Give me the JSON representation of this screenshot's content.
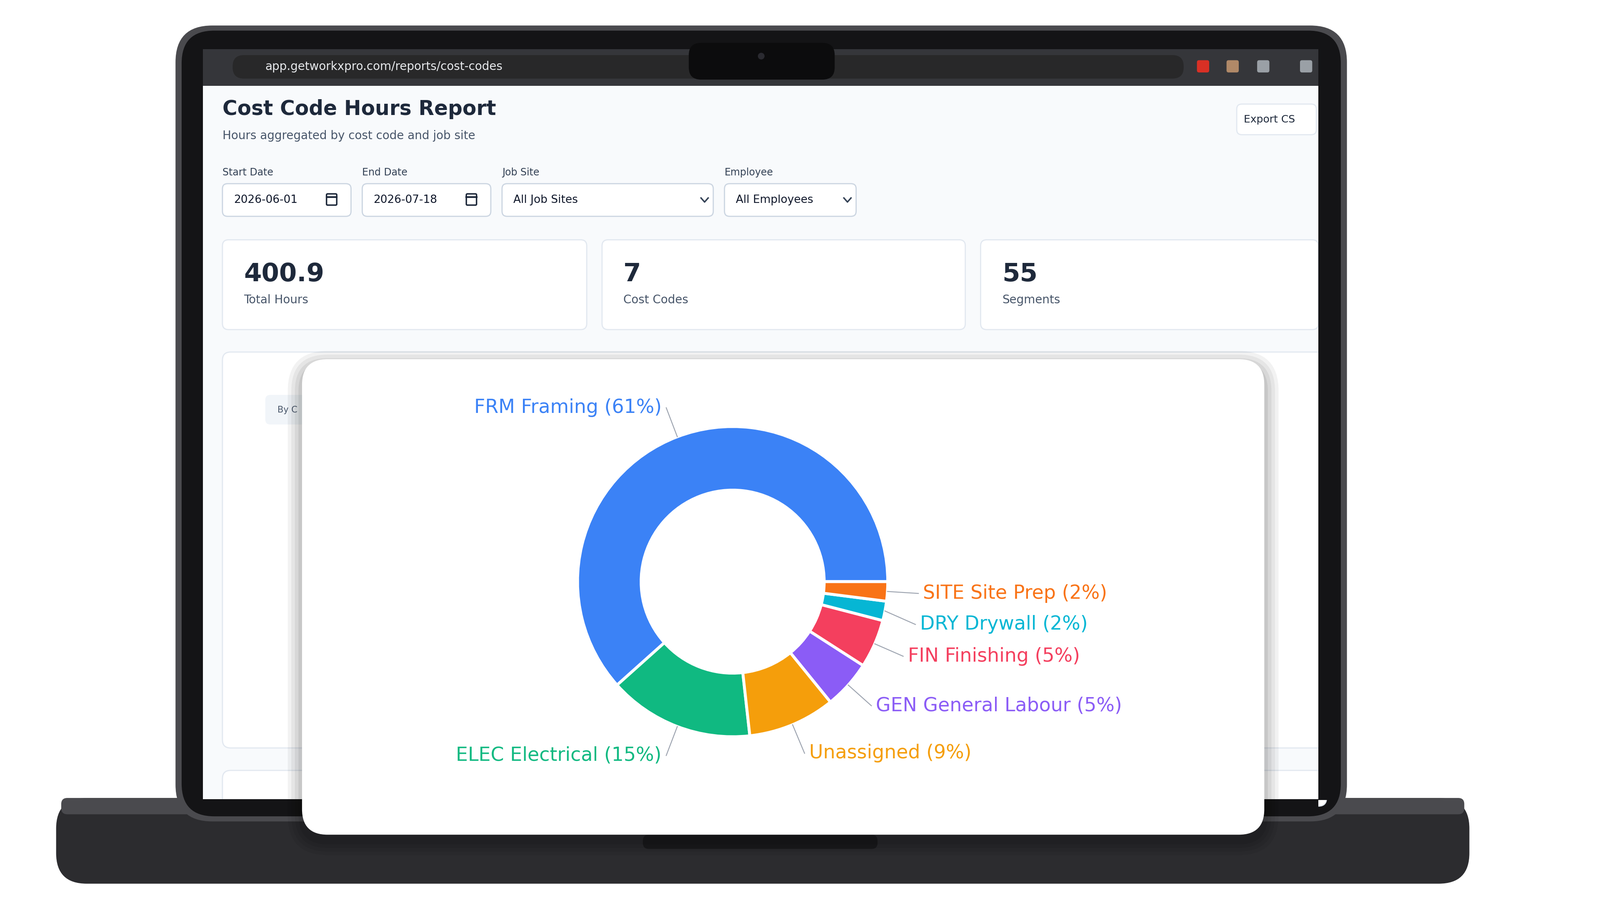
{
  "browser": {
    "url": "app.getworkxpro.com/reports/cost-codes"
  },
  "page": {
    "title": "Cost Code Hours Report",
    "subtitle": "Hours aggregated by cost code and job site",
    "export_button": "Export CS",
    "tab": "By C"
  },
  "filters": [
    {
      "label": "Start Date",
      "value": "2026-06-01"
    },
    {
      "label": "End Date",
      "value": "2026-07-18"
    },
    {
      "label": "Job Site",
      "value": "All Job Sites"
    },
    {
      "label": "Employee",
      "value": "All Employees"
    }
  ],
  "stats": [
    {
      "value": 400.9,
      "label": "Total Hours"
    },
    {
      "value": 7,
      "label": "Cost Codes"
    },
    {
      "value": 55,
      "label": "Segments"
    }
  ],
  "chart_data": {
    "type": "donut",
    "categories": [
      "FRM Framing (61%)",
      "ELEC Electrical (15%)",
      "Unassigned (9%)",
      "GEN General Labour (5%)",
      "FIN Finishing (5%)",
      "DRY Drywall (2%)",
      "SITE Site Prep (2%)"
    ],
    "values": [
      61,
      15,
      9,
      5,
      5,
      2,
      2
    ],
    "colors": [
      "#3b82f6",
      "#10b981",
      "#f59e0b",
      "#8b5cf6",
      "#f43f5e",
      "#06b6d4",
      "#f97316"
    ]
  }
}
